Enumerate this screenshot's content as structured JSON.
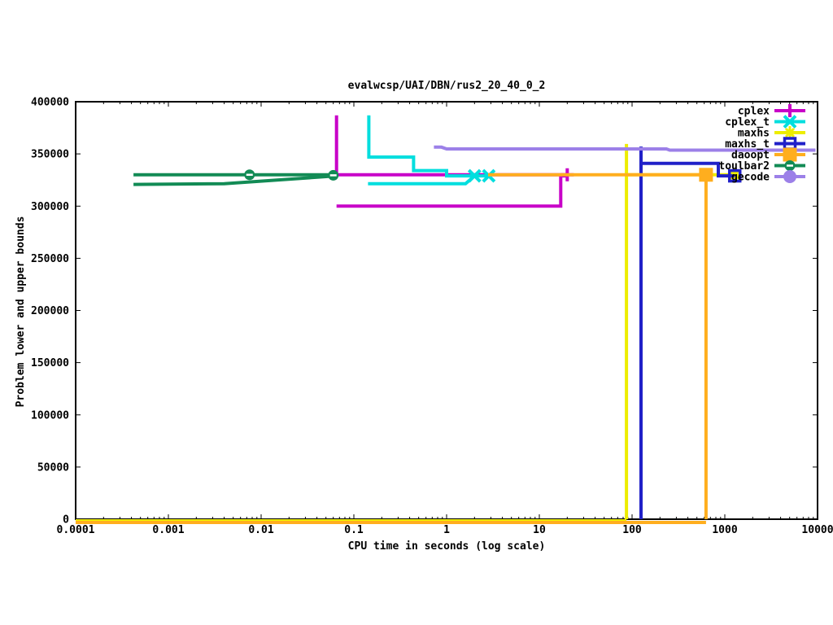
{
  "title": "evalwcsp/UAI/DBN/rus2_20_40_0_2",
  "x_axis_label": "CPU time in seconds (log scale)",
  "y_axis_label": "Problem lower and upper bounds",
  "chart_data": {
    "type": "line",
    "title": "evalwcsp/UAI/DBN/rus2_20_40_0_2",
    "xlabel": "CPU time in seconds (log scale)",
    "ylabel": "Problem lower and upper bounds",
    "x_scale": "log",
    "x_range": [
      0.0001,
      10000
    ],
    "y_range": [
      0,
      400000
    ],
    "grid": false,
    "legend_position": "top-right-inside",
    "x_tick_values": [
      0.0001,
      0.001,
      0.01,
      0.1,
      1,
      10,
      100,
      1000,
      10000
    ],
    "x_tick_labels": [
      "0.0001",
      "0.001",
      "0.01",
      "0.1",
      "1",
      "10",
      "100",
      "1000",
      "10000"
    ],
    "y_tick_values": [
      0,
      50000,
      100000,
      150000,
      200000,
      250000,
      300000,
      350000,
      400000
    ],
    "y_tick_labels": [
      "0",
      "50000",
      "100000",
      "150000",
      "200000",
      "250000",
      "300000",
      "350000",
      "400000"
    ],
    "series": [
      {
        "name": "cplex",
        "color": "#C800C8",
        "marker": "plus",
        "segments": [
          {
            "points": [
              [
                0.065,
                387000
              ],
              [
                0.065,
                330000
              ],
              [
                20,
                330000
              ]
            ]
          },
          {
            "points": [
              [
                0.065,
                300000
              ],
              [
                17,
                300000
              ],
              [
                17,
                329000
              ],
              [
                20,
                329000
              ]
            ]
          }
        ],
        "markers_at": [
          [
            20,
            330000
          ]
        ]
      },
      {
        "name": "cplex_t",
        "color": "#00DEDE",
        "marker": "cross",
        "segments": [
          {
            "points": [
              [
                0.145,
                387000
              ],
              [
                0.145,
                347000
              ],
              [
                0.44,
                347000
              ],
              [
                0.44,
                334000
              ],
              [
                1.0,
                334000
              ],
              [
                1.0,
                329000
              ],
              [
                2.85,
                329000
              ]
            ]
          },
          {
            "points": [
              [
                0.142,
                321500
              ],
              [
                1.6,
                321500
              ],
              [
                2.0,
                329000
              ]
            ]
          }
        ],
        "markers_at": [
          [
            2.0,
            329000
          ],
          [
            2.85,
            329000
          ]
        ]
      },
      {
        "name": "maxhs",
        "color": "#EDED00",
        "marker": "star",
        "segments": [
          {
            "points": [
              [
                0.0001,
                0
              ],
              [
                87,
                0
              ]
            ],
            "dy": 2
          },
          {
            "points": [
              [
                87,
                0
              ],
              [
                87,
                359500
              ]
            ]
          },
          {
            "points": [
              [
                87,
                330000
              ],
              [
                1280,
                330000
              ]
            ]
          }
        ],
        "markers_at": [
          [
            1280,
            330000
          ]
        ]
      },
      {
        "name": "maxhs_t",
        "color": "#2020C8",
        "marker": "square-open",
        "segments": [
          {
            "points": [
              [
                125,
                0
              ],
              [
                125,
                357000
              ]
            ]
          },
          {
            "points": [
              [
                125,
                341000
              ],
              [
                850,
                341000
              ],
              [
                850,
                329000
              ],
              [
                1280,
                329000
              ]
            ]
          }
        ],
        "markers_at": [
          [
            1280,
            329000
          ]
        ]
      },
      {
        "name": "daoopt",
        "color": "#FFAE1E",
        "marker": "square-filled",
        "segments": [
          {
            "points": [
              [
                0.0001,
                0
              ],
              [
                627,
                0
              ]
            ],
            "dy": 4
          },
          {
            "points": [
              [
                627,
                0
              ],
              [
                627,
                330000
              ]
            ]
          },
          {
            "points": [
              [
                2.8,
                330000
              ],
              [
                627,
                330000
              ]
            ]
          }
        ],
        "markers_at": [
          [
            627,
            330000
          ]
        ]
      },
      {
        "name": "toulbar2",
        "color": "#128B55",
        "marker": "circle-dash",
        "segments": [
          {
            "points": [
              [
                0.00042,
                330000
              ],
              [
                0.06,
                330000
              ]
            ]
          },
          {
            "points": [
              [
                0.00042,
                320800
              ],
              [
                0.004,
                321500
              ],
              [
                0.06,
                328700
              ]
            ]
          }
        ],
        "markers_at": [
          [
            0.0075,
            330000
          ],
          [
            0.06,
            329500
          ]
        ]
      },
      {
        "name": "gecode",
        "color": "#9C80E8",
        "marker": "circle-filled",
        "segments": [
          {
            "points": [
              [
                0.73,
                356500
              ],
              [
                0.88,
                356500
              ],
              [
                1.0,
                354800
              ],
              [
                235,
                354800
              ],
              [
                255,
                353600
              ],
              [
                9500,
                353600
              ]
            ]
          }
        ],
        "markers_at": []
      }
    ]
  }
}
